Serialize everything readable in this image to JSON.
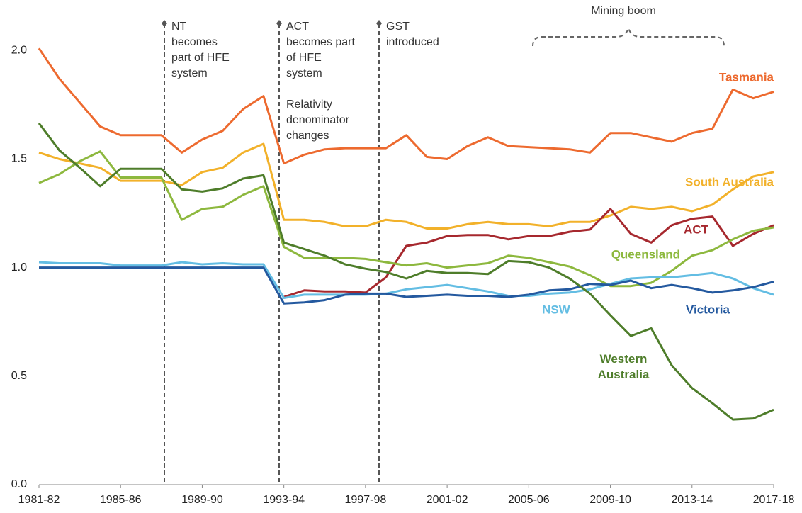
{
  "chart_data": {
    "type": "line",
    "categories": [
      "1981-82",
      null,
      null,
      null,
      "1985-86",
      null,
      null,
      null,
      "1989-90",
      null,
      null,
      null,
      "1993-94",
      null,
      null,
      null,
      "1997-98",
      null,
      null,
      null,
      "2001-02",
      null,
      null,
      null,
      "2005-06",
      null,
      null,
      null,
      "2009-10",
      null,
      null,
      null,
      "2013-14",
      null,
      null,
      null,
      "2017-18"
    ],
    "ylim": [
      0,
      2.2
    ],
    "yticks": [
      {
        "value": 0,
        "label": "0.0"
      },
      0.5,
      {
        "value": 1,
        "label": "1.0"
      },
      1.5,
      {
        "value": 2,
        "label": "2.0"
      }
    ],
    "series": [
      {
        "name": "Tasmania",
        "color": "#ed6a2f",
        "values": [
          2.01,
          1.87,
          1.76,
          1.65,
          1.61,
          1.61,
          1.61,
          1.53,
          1.59,
          1.63,
          1.73,
          1.79,
          1.48,
          1.52,
          1.545,
          1.55,
          1.55,
          1.55,
          1.61,
          1.51,
          1.5,
          1.56,
          1.6,
          1.56,
          1.555,
          1.55,
          1.545,
          1.53,
          1.62,
          1.62,
          1.6,
          1.58,
          1.62,
          1.64,
          1.82,
          1.78,
          1.81
        ]
      },
      {
        "name": "South Australia",
        "color": "#f2b12a",
        "values": [
          1.53,
          1.5,
          1.48,
          1.46,
          1.4,
          1.4,
          1.4,
          1.38,
          1.44,
          1.46,
          1.53,
          1.57,
          1.22,
          1.22,
          1.21,
          1.19,
          1.19,
          1.22,
          1.21,
          1.18,
          1.18,
          1.2,
          1.21,
          1.2,
          1.2,
          1.19,
          1.21,
          1.21,
          1.24,
          1.28,
          1.27,
          1.28,
          1.26,
          1.29,
          1.36,
          1.42,
          1.44
        ]
      },
      {
        "name": "ACT",
        "color": "#a6282e",
        "values": [
          null,
          null,
          null,
          null,
          null,
          null,
          null,
          null,
          null,
          null,
          null,
          null,
          0.865,
          0.895,
          0.89,
          0.89,
          0.885,
          0.955,
          1.1,
          1.115,
          1.145,
          1.15,
          1.15,
          1.13,
          1.145,
          1.145,
          1.165,
          1.175,
          1.27,
          1.155,
          1.115,
          1.195,
          1.225,
          1.235,
          1.1,
          1.155,
          1.195
        ]
      },
      {
        "name": "Queensland",
        "color": "#8db83e",
        "values": [
          1.39,
          1.43,
          1.49,
          1.535,
          1.415,
          1.415,
          1.415,
          1.22,
          1.27,
          1.28,
          1.335,
          1.375,
          1.095,
          1.045,
          1.045,
          1.045,
          1.04,
          1.025,
          1.01,
          1.02,
          1.0,
          1.01,
          1.02,
          1.055,
          1.045,
          1.025,
          1.005,
          0.965,
          0.915,
          0.915,
          0.93,
          0.985,
          1.055,
          1.08,
          1.13,
          1.17,
          1.185
        ]
      },
      {
        "name": "NSW",
        "color": "#63bde3",
        "values": [
          1.025,
          1.02,
          1.02,
          1.02,
          1.01,
          1.01,
          1.01,
          1.025,
          1.015,
          1.02,
          1.015,
          1.015,
          0.86,
          0.875,
          0.875,
          0.875,
          0.875,
          0.88,
          0.9,
          0.91,
          0.92,
          0.905,
          0.89,
          0.87,
          0.87,
          0.88,
          0.885,
          0.9,
          0.925,
          0.95,
          0.955,
          0.955,
          0.965,
          0.975,
          0.95,
          0.905,
          0.875
        ]
      },
      {
        "name": "Victoria",
        "color": "#24599f",
        "values": [
          1,
          1,
          1,
          1,
          1,
          1,
          1,
          1,
          1,
          1,
          1,
          1,
          0.835,
          0.84,
          0.85,
          0.875,
          0.88,
          0.88,
          0.865,
          0.87,
          0.875,
          0.87,
          0.87,
          0.865,
          0.875,
          0.895,
          0.9,
          0.925,
          0.92,
          0.94,
          0.905,
          0.92,
          0.905,
          0.885,
          0.895,
          0.91,
          0.935
        ]
      },
      {
        "name": "Western Australia",
        "color": "#4e7d2a",
        "values": [
          1.665,
          1.54,
          1.46,
          1.375,
          1.455,
          1.455,
          1.455,
          1.36,
          1.35,
          1.365,
          1.41,
          1.425,
          1.115,
          1.085,
          1.055,
          1.015,
          0.995,
          0.98,
          0.95,
          0.985,
          0.975,
          0.975,
          0.97,
          1.03,
          1.025,
          1.0,
          0.95,
          0.88,
          0.78,
          0.685,
          0.72,
          0.55,
          0.445,
          0.375,
          0.3,
          0.305,
          0.345
        ]
      }
    ],
    "annotations": [
      {
        "lines": [
          "NT",
          "becomes",
          "part of HFE",
          "system"
        ]
      },
      {
        "lines": [
          "ACT",
          "becomes part",
          "of HFE",
          "system",
          "",
          "Relativity",
          "denominator",
          "changes"
        ]
      },
      {
        "lines": [
          "GST",
          "introduced"
        ]
      },
      {
        "lines": [
          "Mining boom"
        ]
      }
    ]
  }
}
